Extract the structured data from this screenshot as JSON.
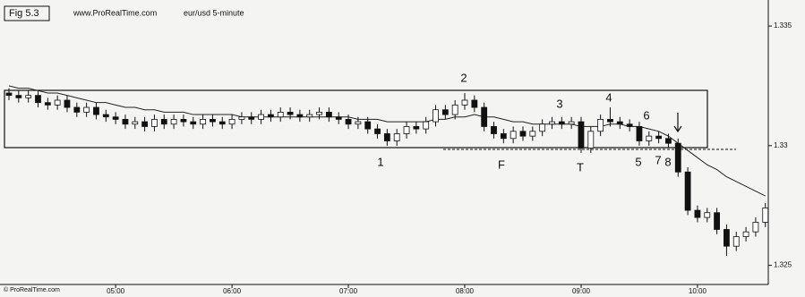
{
  "chart_data": {
    "type": "candlestick",
    "header": {
      "figure": "Fig 5.3",
      "site": "www.ProRealTime.com",
      "title": "eur/usd 5-minute"
    },
    "footer": "© ProRealTime.com",
    "categories": [
      null,
      null,
      null,
      null,
      null,
      null,
      null,
      null,
      null,
      null,
      null,
      "05:00",
      null,
      null,
      null,
      null,
      null,
      null,
      null,
      null,
      null,
      null,
      null,
      "06:00",
      null,
      null,
      null,
      null,
      null,
      null,
      null,
      null,
      null,
      null,
      null,
      "07:00",
      null,
      null,
      null,
      null,
      null,
      null,
      null,
      null,
      null,
      null,
      null,
      "08:00",
      null,
      null,
      null,
      null,
      null,
      null,
      null,
      null,
      null,
      null,
      null,
      "09:00",
      null,
      null,
      null,
      null,
      null,
      null,
      null,
      null,
      null,
      null,
      null,
      "10:00",
      null,
      null,
      null,
      null,
      null,
      null,
      null
    ],
    "open": [
      1.3322,
      1.3321,
      1.332,
      1.3321,
      1.3318,
      1.3317,
      1.3319,
      1.3316,
      1.3314,
      1.3316,
      1.3313,
      1.3312,
      1.3311,
      1.3309,
      1.331,
      1.3308,
      1.3311,
      1.3309,
      1.3311,
      1.331,
      1.3309,
      1.3311,
      1.331,
      1.3309,
      1.3311,
      1.3312,
      1.3311,
      1.3313,
      1.3312,
      1.3314,
      1.3313,
      1.3312,
      1.3313,
      1.3314,
      1.3312,
      1.3311,
      1.3309,
      1.331,
      1.3307,
      1.3305,
      1.3302,
      1.3305,
      1.3308,
      1.3307,
      1.331,
      1.3315,
      1.3313,
      1.3317,
      1.3319,
      1.3316,
      1.3308,
      1.3305,
      1.3303,
      1.3306,
      1.3304,
      1.3306,
      1.3309,
      1.331,
      1.3309,
      1.331,
      1.3299,
      1.3306,
      1.3311,
      1.331,
      1.3309,
      1.3308,
      1.3302,
      1.3304,
      1.3303,
      1.3301,
      1.3289,
      1.3273,
      1.327,
      1.3272,
      1.3265,
      1.3258,
      1.3262,
      1.3264,
      1.3268
    ],
    "high": [
      1.3324,
      1.3323,
      1.3323,
      1.3323,
      1.332,
      1.3321,
      1.3321,
      1.3318,
      1.3318,
      1.3318,
      1.3315,
      1.3314,
      1.3313,
      1.3312,
      1.3312,
      1.3313,
      1.3313,
      1.3313,
      1.3313,
      1.3312,
      1.3313,
      1.3313,
      1.3312,
      1.3313,
      1.3314,
      1.3314,
      1.3315,
      1.3315,
      1.3316,
      1.3316,
      1.3315,
      1.3315,
      1.3316,
      1.3316,
      1.3314,
      1.3313,
      1.3312,
      1.3312,
      1.3309,
      1.3307,
      1.3307,
      1.331,
      1.331,
      1.3312,
      1.3317,
      1.3317,
      1.3319,
      1.3322,
      1.3321,
      1.3318,
      1.331,
      1.3307,
      1.3308,
      1.3308,
      1.3308,
      1.3311,
      1.3312,
      1.3312,
      1.3312,
      1.3312,
      1.3308,
      1.3313,
      1.3316,
      1.3312,
      1.3311,
      1.331,
      1.3306,
      1.3306,
      1.3305,
      1.3303,
      1.3291,
      1.3275,
      1.3274,
      1.3274,
      1.3267,
      1.3264,
      1.3266,
      1.327,
      1.3276
    ],
    "low": [
      1.3319,
      1.3318,
      1.3318,
      1.3316,
      1.3315,
      1.3315,
      1.3314,
      1.3312,
      1.3312,
      1.3311,
      1.331,
      1.3309,
      1.3307,
      1.3307,
      1.3306,
      1.3306,
      1.3307,
      1.3307,
      1.3308,
      1.3307,
      1.3307,
      1.3308,
      1.3307,
      1.3307,
      1.3309,
      1.3309,
      1.3309,
      1.331,
      1.331,
      1.3311,
      1.331,
      1.331,
      1.3311,
      1.331,
      1.3309,
      1.3307,
      1.3307,
      1.3305,
      1.3303,
      1.33,
      1.33,
      1.3303,
      1.3305,
      1.3305,
      1.3308,
      1.3311,
      1.3311,
      1.3315,
      1.3314,
      1.3306,
      1.3303,
      1.3301,
      1.3301,
      1.3302,
      1.3302,
      1.3304,
      1.3307,
      1.3307,
      1.3307,
      1.3297,
      1.3297,
      1.3304,
      1.3308,
      1.3307,
      1.3306,
      1.33,
      1.33,
      1.3301,
      1.3299,
      1.3287,
      1.3271,
      1.3268,
      1.3268,
      1.3263,
      1.3254,
      1.3256,
      1.326,
      1.3262,
      1.3266
    ],
    "close": [
      1.3321,
      1.332,
      1.3321,
      1.3318,
      1.3317,
      1.3319,
      1.3316,
      1.3314,
      1.3316,
      1.3313,
      1.3312,
      1.3311,
      1.3309,
      1.331,
      1.3308,
      1.3311,
      1.3309,
      1.3311,
      1.331,
      1.3309,
      1.3311,
      1.331,
      1.3309,
      1.3311,
      1.3312,
      1.3311,
      1.3313,
      1.3312,
      1.3314,
      1.3313,
      1.3312,
      1.3313,
      1.3314,
      1.3312,
      1.3311,
      1.3309,
      1.331,
      1.3307,
      1.3305,
      1.3302,
      1.3305,
      1.3308,
      1.3307,
      1.331,
      1.3315,
      1.3313,
      1.3317,
      1.3319,
      1.3316,
      1.3308,
      1.3305,
      1.3303,
      1.3306,
      1.3304,
      1.3306,
      1.3309,
      1.331,
      1.3309,
      1.331,
      1.3299,
      1.3306,
      1.3311,
      1.331,
      1.3309,
      1.3308,
      1.3302,
      1.3304,
      1.3303,
      1.3301,
      1.3289,
      1.3273,
      1.327,
      1.3272,
      1.3265,
      1.3258,
      1.3262,
      1.3264,
      1.3268,
      1.3274
    ],
    "moving_average": {
      "color": "#222222",
      "values": [
        1.3325,
        1.3324,
        1.3324,
        1.3323,
        1.3322,
        1.3322,
        1.3321,
        1.332,
        1.3319,
        1.3318,
        1.3318,
        1.3317,
        1.3316,
        1.3316,
        1.3315,
        1.3315,
        1.3314,
        1.3314,
        1.3314,
        1.3313,
        1.3313,
        1.3313,
        1.3313,
        1.3313,
        1.3312,
        1.3312,
        1.3312,
        1.3312,
        1.3312,
        1.3312,
        1.3312,
        1.3312,
        1.3312,
        1.3312,
        1.3312,
        1.3312,
        1.3311,
        1.3311,
        1.3311,
        1.331,
        1.331,
        1.331,
        1.331,
        1.331,
        1.3311,
        1.3311,
        1.3312,
        1.3312,
        1.3313,
        1.3312,
        1.3312,
        1.3311,
        1.331,
        1.331,
        1.3309,
        1.3309,
        1.3309,
        1.3309,
        1.3309,
        1.3308,
        1.3308,
        1.3308,
        1.3309,
        1.3309,
        1.3308,
        1.3308,
        1.3307,
        1.3306,
        1.3304,
        1.3301,
        1.3298,
        1.3295,
        1.3292,
        1.329,
        1.3287,
        1.3285,
        1.3283,
        1.3281,
        1.3279
      ]
    },
    "up_color": "#ffffff",
    "down_color": "#111111",
    "annotations": [
      "1",
      "2",
      "3",
      "4",
      "5",
      "6",
      "7",
      "8",
      "F",
      "T"
    ],
    "ylim": [
      1.3242,
      1.3359
    ],
    "yticks": [
      1.325,
      1.33,
      1.335
    ]
  }
}
